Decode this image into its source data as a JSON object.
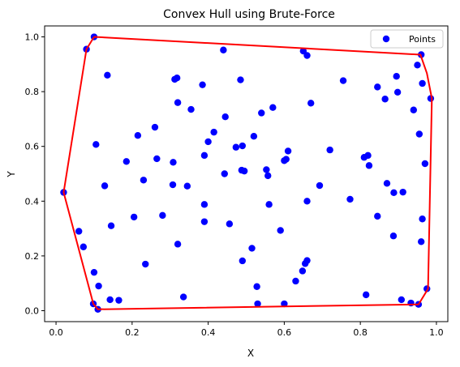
{
  "chart_data": {
    "type": "scatter",
    "title": "Convex Hull using Brute-Force",
    "xlabel": "X",
    "ylabel": "Y",
    "xlim": [
      -0.03,
      1.03
    ],
    "ylim": [
      -0.04,
      1.04
    ],
    "xticks": [
      0.0,
      0.2,
      0.4,
      0.6,
      0.8,
      1.0
    ],
    "xtick_labels": [
      "0.0",
      "0.2",
      "0.4",
      "0.6",
      "0.8",
      "1.0"
    ],
    "yticks": [
      0.0,
      0.2,
      0.4,
      0.6,
      0.8,
      1.0
    ],
    "ytick_labels": [
      "0.0",
      "0.2",
      "0.4",
      "0.6",
      "0.8",
      "1.0"
    ],
    "grid": false,
    "legend": {
      "position": "top-right",
      "entries": [
        "Points"
      ]
    },
    "colors": {
      "points": "#0000ff",
      "hull": "#ff0000"
    },
    "series": [
      {
        "name": "Points",
        "kind": "scatter",
        "points": [
          [
            0.1,
            1.0
          ],
          [
            0.08,
            0.955
          ],
          [
            0.135,
            0.86
          ],
          [
            0.44,
            0.952
          ],
          [
            0.65,
            0.948
          ],
          [
            0.66,
            0.932
          ],
          [
            0.312,
            0.845
          ],
          [
            0.318,
            0.85
          ],
          [
            0.385,
            0.825
          ],
          [
            0.485,
            0.843
          ],
          [
            0.755,
            0.84
          ],
          [
            0.845,
            0.817
          ],
          [
            0.865,
            0.773
          ],
          [
            0.895,
            0.856
          ],
          [
            0.898,
            0.798
          ],
          [
            0.95,
            0.897
          ],
          [
            0.96,
            0.935
          ],
          [
            0.963,
            0.83
          ],
          [
            0.985,
            0.775
          ],
          [
            0.94,
            0.733
          ],
          [
            0.67,
            0.758
          ],
          [
            0.57,
            0.742
          ],
          [
            0.54,
            0.722
          ],
          [
            0.445,
            0.708
          ],
          [
            0.355,
            0.735
          ],
          [
            0.32,
            0.76
          ],
          [
            0.26,
            0.67
          ],
          [
            0.215,
            0.64
          ],
          [
            0.415,
            0.652
          ],
          [
            0.4,
            0.617
          ],
          [
            0.105,
            0.607
          ],
          [
            0.52,
            0.637
          ],
          [
            0.473,
            0.597
          ],
          [
            0.49,
            0.602
          ],
          [
            0.61,
            0.583
          ],
          [
            0.72,
            0.587
          ],
          [
            0.81,
            0.56
          ],
          [
            0.82,
            0.567
          ],
          [
            0.823,
            0.53
          ],
          [
            0.955,
            0.645
          ],
          [
            0.185,
            0.545
          ],
          [
            0.265,
            0.555
          ],
          [
            0.308,
            0.542
          ],
          [
            0.39,
            0.567
          ],
          [
            0.6,
            0.548
          ],
          [
            0.605,
            0.553
          ],
          [
            0.488,
            0.513
          ],
          [
            0.495,
            0.51
          ],
          [
            0.553,
            0.515
          ],
          [
            0.557,
            0.493
          ],
          [
            0.443,
            0.5
          ],
          [
            0.97,
            0.537
          ],
          [
            0.23,
            0.477
          ],
          [
            0.128,
            0.456
          ],
          [
            0.307,
            0.46
          ],
          [
            0.345,
            0.455
          ],
          [
            0.693,
            0.457
          ],
          [
            0.87,
            0.465
          ],
          [
            0.888,
            0.431
          ],
          [
            0.912,
            0.433
          ],
          [
            0.02,
            0.432
          ],
          [
            0.773,
            0.407
          ],
          [
            0.66,
            0.4
          ],
          [
            0.39,
            0.388
          ],
          [
            0.56,
            0.388
          ],
          [
            0.205,
            0.342
          ],
          [
            0.28,
            0.348
          ],
          [
            0.845,
            0.345
          ],
          [
            0.963,
            0.335
          ],
          [
            0.39,
            0.325
          ],
          [
            0.456,
            0.317
          ],
          [
            0.145,
            0.31
          ],
          [
            0.06,
            0.29
          ],
          [
            0.072,
            0.233
          ],
          [
            0.59,
            0.293
          ],
          [
            0.887,
            0.273
          ],
          [
            0.96,
            0.252
          ],
          [
            0.32,
            0.243
          ],
          [
            0.515,
            0.228
          ],
          [
            0.49,
            0.182
          ],
          [
            0.235,
            0.17
          ],
          [
            0.66,
            0.183
          ],
          [
            0.655,
            0.172
          ],
          [
            0.648,
            0.145
          ],
          [
            0.1,
            0.14
          ],
          [
            0.528,
            0.088
          ],
          [
            0.112,
            0.09
          ],
          [
            0.63,
            0.108
          ],
          [
            0.975,
            0.08
          ],
          [
            0.815,
            0.058
          ],
          [
            0.335,
            0.05
          ],
          [
            0.142,
            0.04
          ],
          [
            0.165,
            0.038
          ],
          [
            0.908,
            0.04
          ],
          [
            0.933,
            0.028
          ],
          [
            0.953,
            0.023
          ],
          [
            0.098,
            0.025
          ],
          [
            0.11,
            0.005
          ],
          [
            0.53,
            0.025
          ],
          [
            0.6,
            0.025
          ]
        ]
      },
      {
        "name": "",
        "kind": "line",
        "points": [
          [
            0.1,
            1.0
          ],
          [
            0.958,
            0.935
          ],
          [
            0.975,
            0.867
          ],
          [
            0.988,
            0.775
          ],
          [
            0.978,
            0.08
          ],
          [
            0.953,
            0.023
          ],
          [
            0.11,
            0.005
          ],
          [
            0.098,
            0.025
          ],
          [
            0.02,
            0.432
          ],
          [
            0.08,
            0.955
          ],
          [
            0.1,
            1.0
          ]
        ]
      }
    ]
  }
}
